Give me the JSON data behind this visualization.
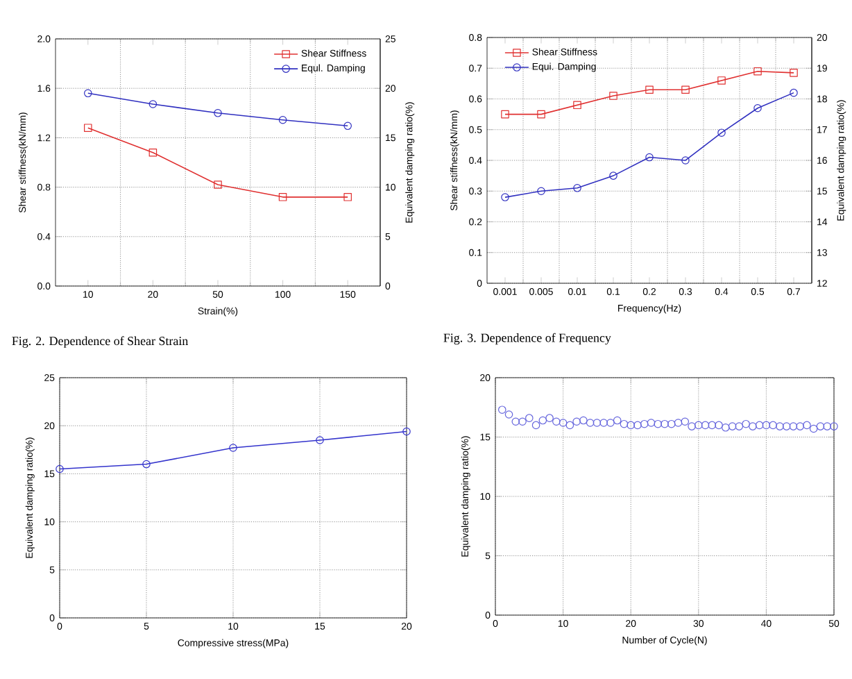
{
  "chart_data": [
    {
      "type": "line",
      "title": "Fig. 2. Dependence of Shear Strain",
      "xlabel": "Strain(%)",
      "ylabel": "Shear stiffness(kN/mm)",
      "y2label": "Equivalent damping ratio(%)",
      "categories": [
        "10",
        "20",
        "50",
        "100",
        "150"
      ],
      "series": [
        {
          "name": "Shear Stiffness",
          "color": "#e03030",
          "marker": "square",
          "values": [
            1.28,
            1.08,
            0.82,
            0.72,
            0.72
          ]
        },
        {
          "name": "Equl. Damping",
          "color": "#3030c0",
          "marker": "circle",
          "axis": "y2",
          "values": [
            19.5,
            18.4,
            17.5,
            16.8,
            16.2
          ]
        }
      ],
      "ylim": [
        0,
        2
      ],
      "yticks": [
        {
          "value": 0,
          "label": "0.0"
        },
        0.4,
        0.8,
        1.2,
        1.6,
        {
          "value": 2,
          "label": "2.0"
        }
      ],
      "y2lim": [
        0,
        25
      ],
      "y2ticks": [
        0,
        5,
        10,
        15,
        20,
        25
      ],
      "grid": true,
      "legend": "top right",
      "line_style": "solid"
    },
    {
      "type": "line",
      "title": "Fig. 3. Dependence of Frequency",
      "xlabel": "Frequency(Hz)",
      "ylabel": "Shear stiffness(kN/mm)",
      "y2label": "Equivalent damping ratio(%)",
      "categories": [
        "0.001",
        "0.005",
        "0.01",
        "0.1",
        "0.2",
        "0.3",
        "0.4",
        "0.5",
        "0.7"
      ],
      "series": [
        {
          "name": "Shear Stiffness",
          "color": "#e03030",
          "marker": "square",
          "values": [
            0.55,
            0.55,
            0.58,
            0.61,
            0.63,
            0.63,
            0.66,
            0.69,
            0.685
          ]
        },
        {
          "name": "Equi. Damping",
          "color": "#3030c0",
          "marker": "circle",
          "axis": "y2",
          "values": [
            14.8,
            15.0,
            15.1,
            15.5,
            16.1,
            16.0,
            16.9,
            17.7,
            18.2
          ]
        }
      ],
      "ylim": [
        0,
        0.8
      ],
      "yticks": [
        0,
        0.1,
        0.2,
        0.3,
        0.4,
        0.5,
        0.6,
        0.7,
        0.8
      ],
      "y2lim": [
        12,
        20
      ],
      "y2ticks": [
        12,
        13,
        14,
        15,
        16,
        17,
        18,
        19,
        20
      ],
      "grid": true,
      "legend": "top left",
      "line_style": "solid"
    },
    {
      "type": "line",
      "xlabel": "Compressive stress(MPa)",
      "ylabel": "Equivalent damping ratio(%)",
      "x": [
        0,
        5,
        10,
        15,
        20
      ],
      "series": [
        {
          "color": "#3333cc",
          "values": [
            15.5,
            16.0,
            17.7,
            18.5,
            19.4
          ]
        }
      ],
      "xlim": [
        0,
        20
      ],
      "xticks": [
        0,
        5,
        10,
        15,
        20
      ],
      "ylim": [
        0,
        25
      ],
      "yticks": [
        0,
        5,
        10,
        15,
        20,
        25
      ],
      "grid": true,
      "marker": "circle",
      "line_style": "solid"
    },
    {
      "type": "scatter",
      "xlabel": "Number of Cycle(N)",
      "ylabel": "Equivalent damping ratio(%)",
      "x": [
        1,
        2,
        3,
        4,
        5,
        6,
        7,
        8,
        9,
        10,
        11,
        12,
        13,
        14,
        15,
        16,
        17,
        18,
        19,
        20,
        21,
        22,
        23,
        24,
        25,
        26,
        27,
        28,
        29,
        30,
        31,
        32,
        33,
        34,
        35,
        36,
        37,
        38,
        39,
        40,
        41,
        42,
        43,
        44,
        45,
        46,
        47,
        48,
        49,
        50
      ],
      "series": [
        {
          "color": "#6666dd",
          "values": [
            17.3,
            16.9,
            16.3,
            16.3,
            16.6,
            16.0,
            16.4,
            16.6,
            16.3,
            16.2,
            16.0,
            16.3,
            16.4,
            16.2,
            16.2,
            16.2,
            16.2,
            16.4,
            16.1,
            16.0,
            16.0,
            16.1,
            16.2,
            16.1,
            16.1,
            16.1,
            16.2,
            16.3,
            15.9,
            16.0,
            16.0,
            16.0,
            16.0,
            15.8,
            15.9,
            15.9,
            16.1,
            15.9,
            16.0,
            16.0,
            16.0,
            15.9,
            15.9,
            15.9,
            15.9,
            16.0,
            15.7,
            15.9,
            15.9,
            15.9
          ]
        }
      ],
      "xlim": [
        0,
        50
      ],
      "xticks": [
        0,
        10,
        20,
        30,
        40,
        50
      ],
      "ylim": [
        0,
        20
      ],
      "yticks": [
        0,
        5,
        10,
        15,
        20
      ],
      "grid": true,
      "marker": "circle"
    }
  ]
}
